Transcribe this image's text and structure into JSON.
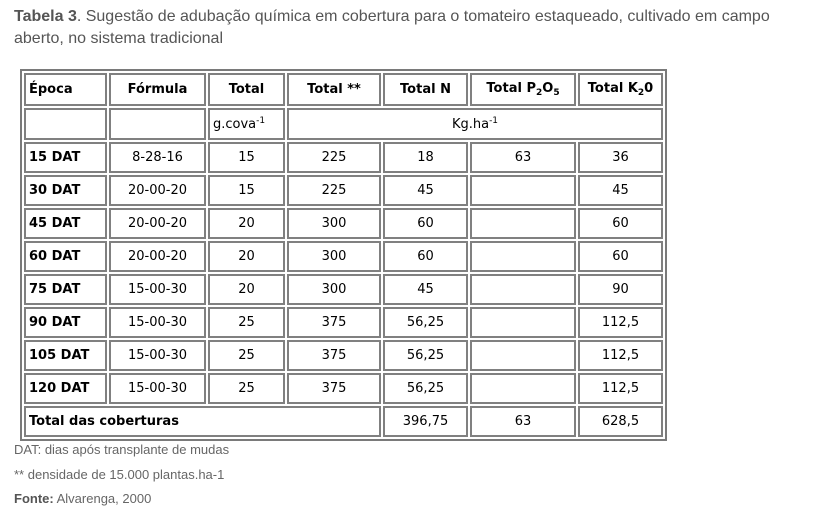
{
  "caption": {
    "label": "Tabela 3",
    "text": ". Sugestão de adubação química em cobertura para o tomateiro estaqueado, cultivado em campo aberto, no sistema tradicional"
  },
  "table": {
    "headers": {
      "epoca": "Época",
      "formula": "Fórmula",
      "total": "Total",
      "total_star": "Total **",
      "total_n": "Total N",
      "total_p_prefix": "Total P",
      "total_p_sub1": "2",
      "total_p_mid": "O",
      "total_p_sub2": "5",
      "total_k_prefix": "Total K",
      "total_k_sub": "2",
      "total_k_suffix": "0"
    },
    "units": {
      "gcova_base": "g.cova",
      "gcova_sup": "-1",
      "kgha_base": "Kg.ha",
      "kgha_sup": "-1"
    },
    "rows": [
      {
        "epoca": "15 DAT",
        "formula": "8-28-16",
        "total": "15",
        "total_star": "225",
        "n": "18",
        "p": "63",
        "k": "36"
      },
      {
        "epoca": "30 DAT",
        "formula": "20-00-20",
        "total": "15",
        "total_star": "225",
        "n": "45",
        "p": "",
        "k": "45"
      },
      {
        "epoca": "45 DAT",
        "formula": "20-00-20",
        "total": "20",
        "total_star": "300",
        "n": "60",
        "p": "",
        "k": "60"
      },
      {
        "epoca": "60 DAT",
        "formula": "20-00-20",
        "total": "20",
        "total_star": "300",
        "n": "60",
        "p": "",
        "k": "60"
      },
      {
        "epoca": "75 DAT",
        "formula": "15-00-30",
        "total": "20",
        "total_star": "300",
        "n": "45",
        "p": "",
        "k": "90"
      },
      {
        "epoca": "90 DAT",
        "formula": "15-00-30",
        "total": "25",
        "total_star": "375",
        "n": "56,25",
        "p": "",
        "k": "112,5"
      },
      {
        "epoca": "105 DAT",
        "formula": "15-00-30",
        "total": "25",
        "total_star": "375",
        "n": "56,25",
        "p": "",
        "k": "112,5"
      },
      {
        "epoca": "120 DAT",
        "formula": "15-00-30",
        "total": "25",
        "total_star": "375",
        "n": "56,25",
        "p": "",
        "k": "112,5"
      }
    ],
    "total_row": {
      "label": "Total das coberturas",
      "n": "396,75",
      "p": "63",
      "k": "628,5"
    }
  },
  "notes": {
    "dat": "DAT: dias após transplante de mudas",
    "density": "** densidade de 15.000 plantas.ha-1",
    "source_label": "Fonte:",
    "source_text": " Alvarenga, 2000"
  }
}
